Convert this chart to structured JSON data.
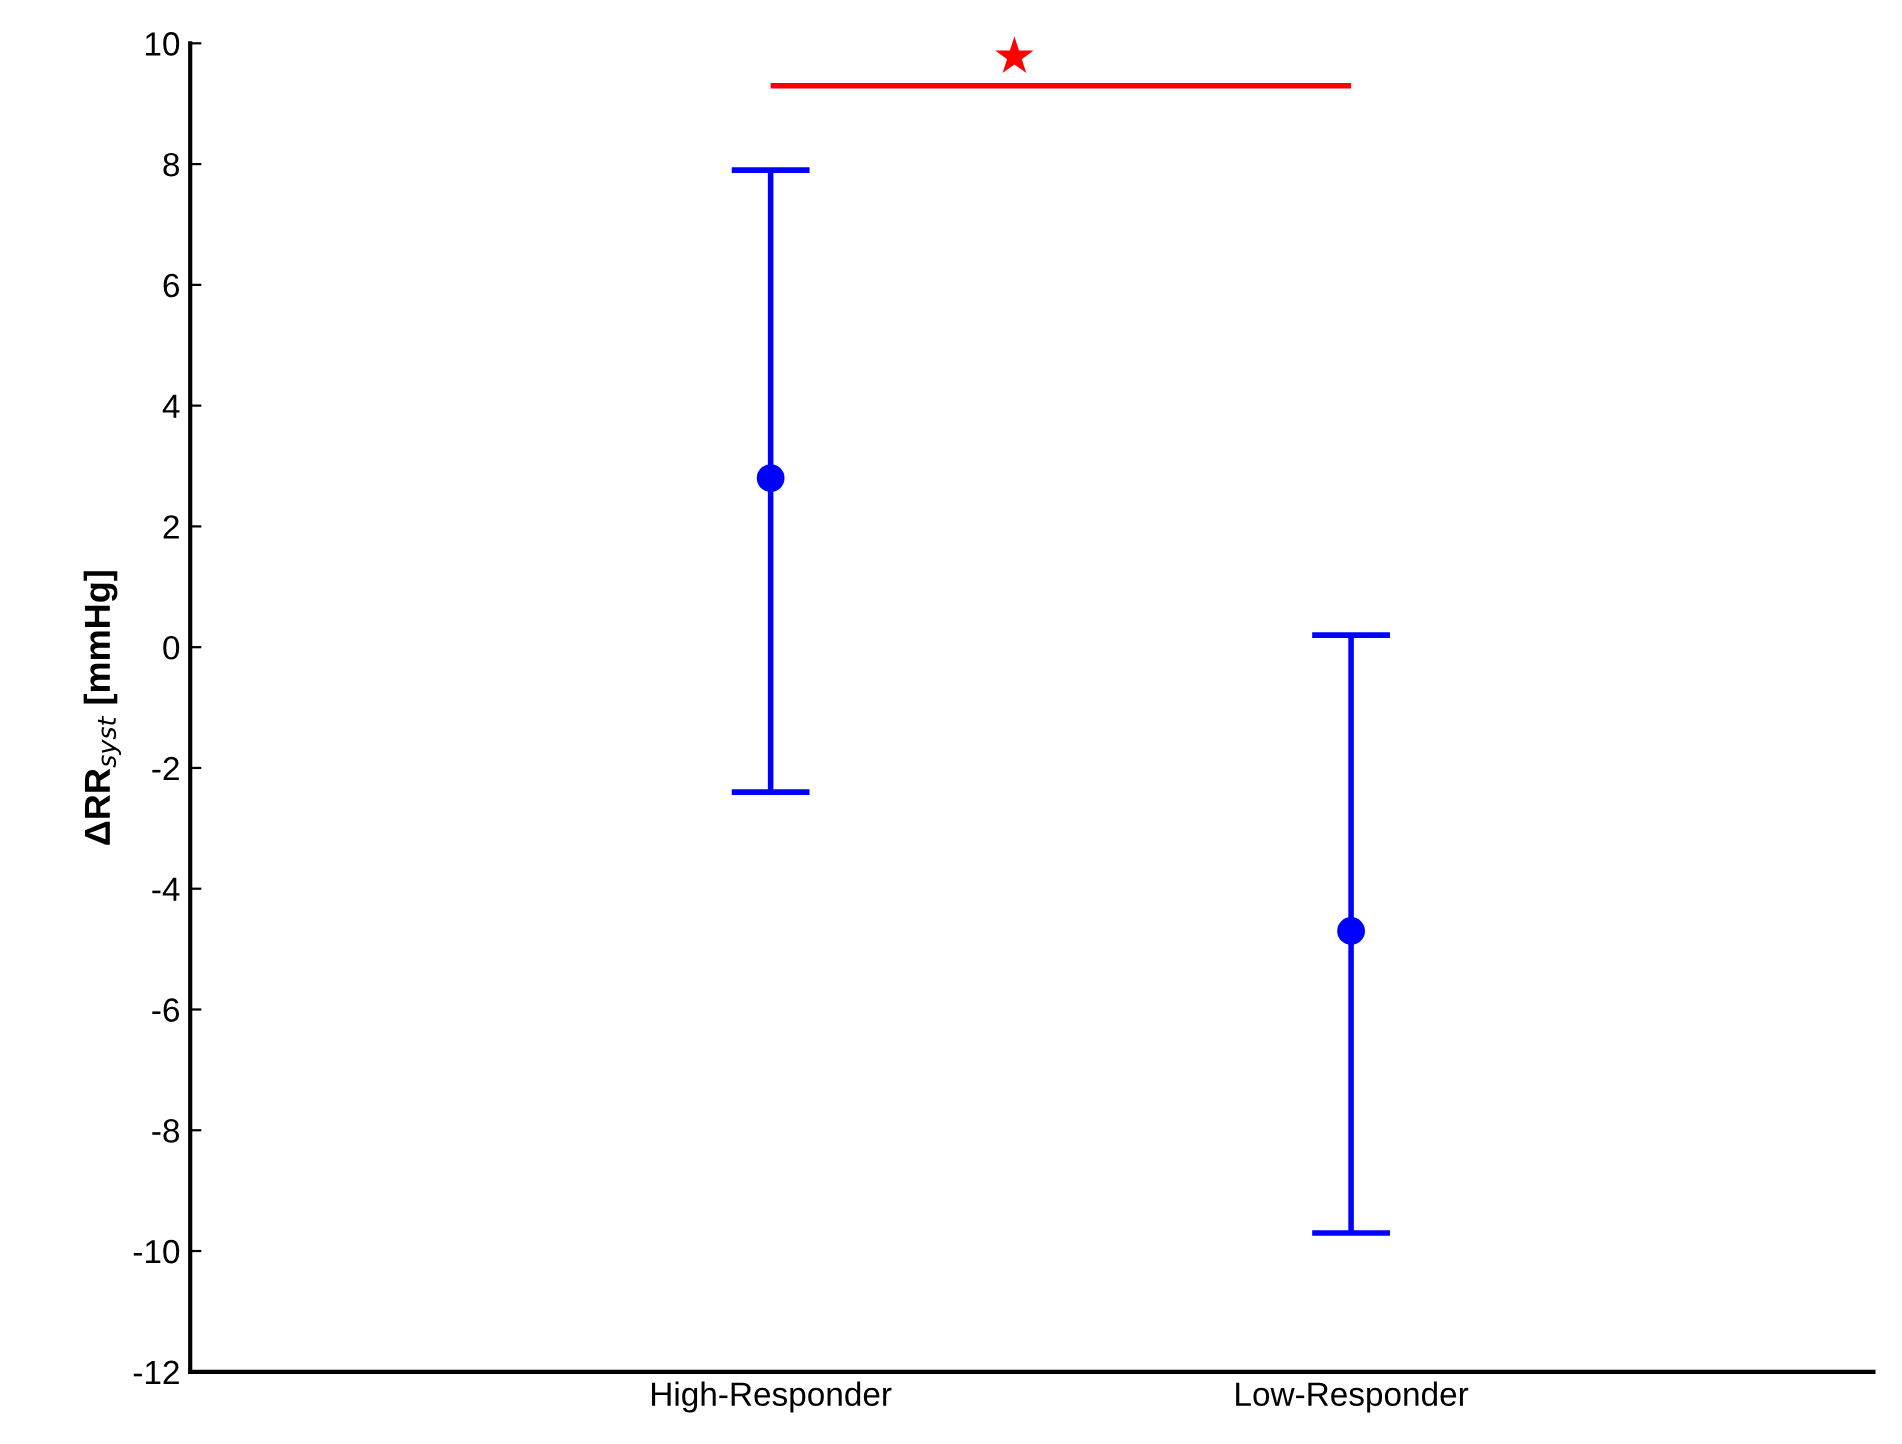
{
  "chart_data": {
    "type": "scatter",
    "ylabel": "ΔRR$_{syst}$ [mmHg]",
    "categories": [
      "High-Responder",
      "Low-Responder"
    ],
    "series": [
      {
        "color": "#0000ff",
        "values": [
          2.8,
          -4.7
        ],
        "errors": [
          [
            -2.4,
            7.9
          ],
          [
            -9.7,
            0.2
          ]
        ]
      }
    ],
    "ylim": [
      -12,
      10
    ],
    "yticks": [
      -12,
      -10,
      -8,
      -6,
      -4,
      -2,
      0,
      2,
      4,
      6,
      8,
      10
    ],
    "grid": false,
    "legend": false,
    "marker": "circle",
    "annotations": [
      "★"
    ]
  }
}
